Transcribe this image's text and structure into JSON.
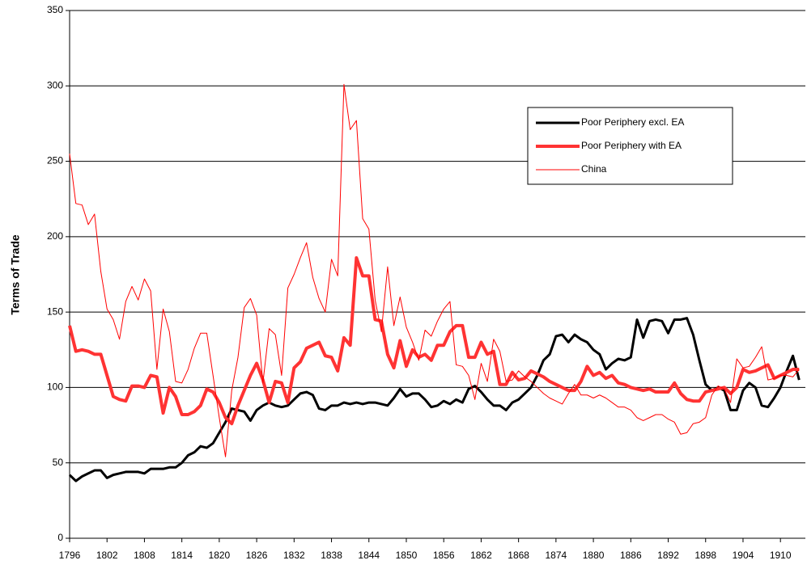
{
  "chart_data": {
    "type": "line",
    "y_label": "Terms of Trade",
    "x": [
      1796,
      1797,
      1798,
      1799,
      1800,
      1801,
      1802,
      1803,
      1804,
      1805,
      1806,
      1807,
      1808,
      1809,
      1810,
      1811,
      1812,
      1813,
      1814,
      1815,
      1816,
      1817,
      1818,
      1819,
      1820,
      1821,
      1822,
      1823,
      1824,
      1825,
      1826,
      1827,
      1828,
      1829,
      1830,
      1831,
      1832,
      1833,
      1834,
      1835,
      1836,
      1837,
      1838,
      1839,
      1840,
      1841,
      1842,
      1843,
      1844,
      1845,
      1846,
      1847,
      1848,
      1849,
      1850,
      1851,
      1852,
      1853,
      1854,
      1855,
      1856,
      1857,
      1858,
      1859,
      1860,
      1861,
      1862,
      1863,
      1864,
      1865,
      1866,
      1867,
      1868,
      1869,
      1870,
      1871,
      1872,
      1873,
      1874,
      1875,
      1876,
      1877,
      1878,
      1879,
      1880,
      1881,
      1882,
      1883,
      1884,
      1885,
      1886,
      1887,
      1888,
      1889,
      1890,
      1891,
      1892,
      1893,
      1894,
      1895,
      1896,
      1897,
      1898,
      1899,
      1900,
      1901,
      1902,
      1903,
      1904,
      1905,
      1906,
      1907,
      1908,
      1909,
      1910,
      1911,
      1912,
      1913
    ],
    "series": [
      {
        "name": "Poor Periphery excl. EA",
        "color": "#000000",
        "width": 3,
        "values": [
          42,
          38,
          41,
          43,
          45,
          45,
          40,
          42,
          43,
          44,
          44,
          44,
          43,
          46,
          46,
          46,
          47,
          47,
          50,
          55,
          57,
          61,
          60,
          63,
          70,
          77,
          86,
          85,
          84,
          78,
          85,
          88,
          90,
          88,
          87,
          88,
          92,
          96,
          97,
          95,
          86,
          85,
          88,
          88,
          90,
          89,
          90,
          89,
          90,
          90,
          89,
          88,
          93,
          99,
          94,
          96,
          96,
          92,
          87,
          88,
          91,
          89,
          92,
          90,
          99,
          101,
          97,
          92,
          88,
          88,
          85,
          90,
          92,
          96,
          100,
          108,
          118,
          122,
          134,
          135,
          130,
          135,
          132,
          130,
          125,
          122,
          112,
          116,
          119,
          118,
          120,
          145,
          133,
          144,
          145,
          144,
          136,
          145,
          145,
          146,
          135,
          118,
          102,
          98,
          100,
          98,
          85,
          85,
          98,
          103,
          100,
          88,
          87,
          93,
          100,
          111,
          121,
          105
        ]
      },
      {
        "name": "Poor Periphery with EA",
        "color": "#ff3333",
        "width": 4,
        "values": [
          141,
          124,
          125,
          124,
          122,
          122,
          108,
          94,
          92,
          91,
          101,
          101,
          100,
          108,
          107,
          83,
          100,
          94,
          82,
          82,
          84,
          88,
          99,
          97,
          90,
          80,
          76,
          88,
          98,
          108,
          116,
          105,
          90,
          104,
          103,
          90,
          113,
          117,
          126,
          128,
          130,
          121,
          120,
          111,
          133,
          128,
          186,
          174,
          174,
          145,
          144,
          122,
          113,
          131,
          114,
          125,
          120,
          122,
          118,
          128,
          128,
          137,
          141,
          141,
          120,
          120,
          130,
          122,
          124,
          102,
          102,
          110,
          105,
          106,
          111,
          109,
          107,
          104,
          102,
          100,
          98,
          98,
          104,
          114,
          108,
          110,
          106,
          108,
          103,
          102,
          100,
          99,
          98,
          99,
          97,
          97,
          97,
          103,
          96,
          92,
          91,
          91,
          97,
          98,
          99,
          100,
          96,
          100,
          112,
          110,
          111,
          113,
          115,
          106,
          108,
          110,
          112,
          112
        ]
      },
      {
        "name": "China",
        "color": "#ff0000",
        "width": 1,
        "values": [
          255,
          222,
          221,
          208,
          215,
          177,
          152,
          145,
          132,
          157,
          167,
          158,
          172,
          164,
          112,
          152,
          137,
          104,
          103,
          112,
          126,
          136,
          136,
          108,
          80,
          54,
          98,
          120,
          153,
          159,
          148,
          103,
          139,
          135,
          108,
          166,
          175,
          186,
          196,
          173,
          159,
          150,
          185,
          174,
          301,
          271,
          277,
          212,
          205,
          158,
          137,
          180,
          141,
          160,
          140,
          130,
          118,
          138,
          134,
          144,
          152,
          157,
          115,
          114,
          108,
          92,
          116,
          104,
          132,
          124,
          104,
          105,
          111,
          107,
          104,
          100,
          96,
          93,
          91,
          89,
          96,
          102,
          95,
          95,
          93,
          95,
          93,
          90,
          87,
          87,
          85,
          80,
          78,
          80,
          82,
          82,
          79,
          77,
          69,
          70,
          76,
          77,
          80,
          95,
          101,
          99,
          90,
          119,
          113,
          114,
          120,
          127,
          105,
          106,
          108,
          108,
          107,
          112
        ]
      }
    ],
    "xlim": [
      1796,
      1914
    ],
    "xticks": [
      1796,
      1802,
      1808,
      1814,
      1820,
      1826,
      1832,
      1838,
      1844,
      1850,
      1856,
      1862,
      1868,
      1874,
      1880,
      1886,
      1892,
      1898,
      1904,
      1910
    ],
    "ylim": [
      0,
      350
    ],
    "yticks": [
      0,
      50,
      100,
      150,
      200,
      250,
      300,
      350
    ],
    "grid": true,
    "legend": "upper-right"
  }
}
